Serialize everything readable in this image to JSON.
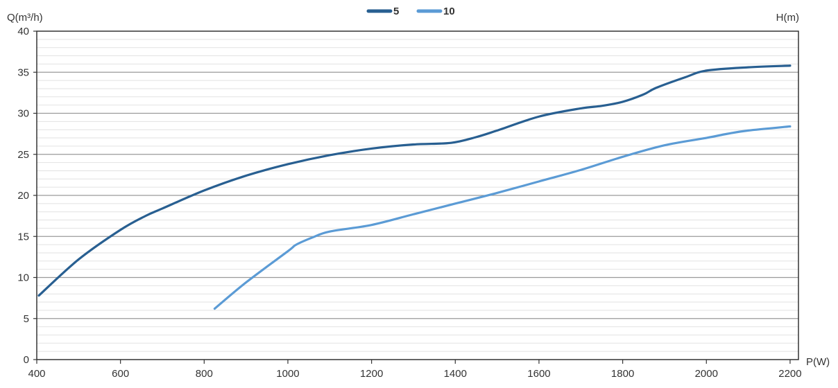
{
  "chart_data": {
    "type": "line",
    "title": "",
    "xlabel": "P(W)",
    "ylabel": "Q(m³/h)",
    "ylabel_right": "H(m)",
    "xlim": [
      400,
      2220
    ],
    "ylim": [
      0,
      40
    ],
    "x_ticks": [
      400,
      600,
      800,
      1000,
      1200,
      1400,
      1600,
      1800,
      2000,
      2200
    ],
    "y_ticks": [
      0,
      5,
      10,
      15,
      20,
      25,
      30,
      35,
      40
    ],
    "grid": true,
    "legend_position": "top-center",
    "series": [
      {
        "name": "5",
        "color": "#285f91",
        "points": [
          [
            405,
            7.8
          ],
          [
            500,
            12.2
          ],
          [
            600,
            15.8
          ],
          [
            660,
            17.5
          ],
          [
            700,
            18.4
          ],
          [
            800,
            20.6
          ],
          [
            900,
            22.4
          ],
          [
            1000,
            23.8
          ],
          [
            1100,
            24.9
          ],
          [
            1200,
            25.7
          ],
          [
            1300,
            26.2
          ],
          [
            1390,
            26.4
          ],
          [
            1450,
            27.1
          ],
          [
            1500,
            27.9
          ],
          [
            1600,
            29.6
          ],
          [
            1700,
            30.6
          ],
          [
            1750,
            30.9
          ],
          [
            1800,
            31.4
          ],
          [
            1850,
            32.3
          ],
          [
            1880,
            33.1
          ],
          [
            1950,
            34.4
          ],
          [
            2000,
            35.2
          ],
          [
            2100,
            35.6
          ],
          [
            2200,
            35.8
          ]
        ]
      },
      {
        "name": "10",
        "color": "#5b9bd5",
        "points": [
          [
            825,
            6.2
          ],
          [
            900,
            9.4
          ],
          [
            1000,
            13.2
          ],
          [
            1020,
            14.0
          ],
          [
            1060,
            14.9
          ],
          [
            1100,
            15.6
          ],
          [
            1200,
            16.4
          ],
          [
            1300,
            17.7
          ],
          [
            1400,
            19.0
          ],
          [
            1500,
            20.3
          ],
          [
            1600,
            21.7
          ],
          [
            1700,
            23.1
          ],
          [
            1800,
            24.7
          ],
          [
            1900,
            26.1
          ],
          [
            2000,
            27.0
          ],
          [
            2050,
            27.5
          ],
          [
            2100,
            27.9
          ],
          [
            2200,
            28.4
          ]
        ]
      }
    ]
  }
}
